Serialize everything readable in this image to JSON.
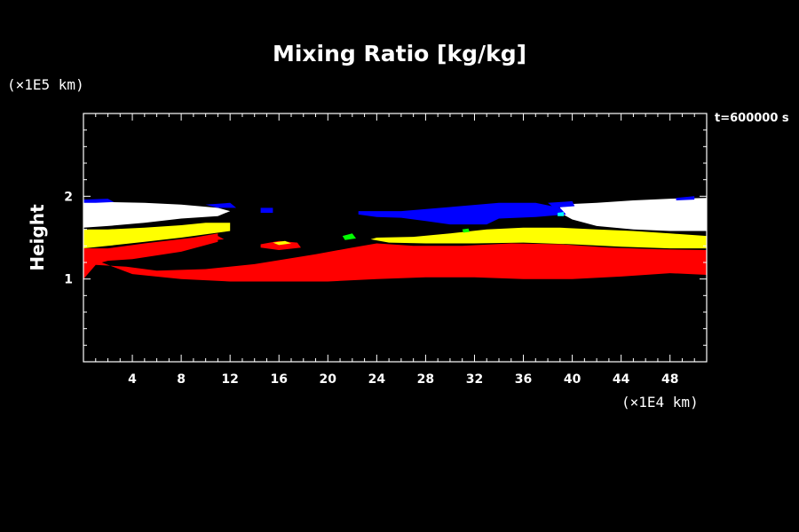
{
  "chart_data": {
    "type": "heatmap",
    "title": "Mixing Ratio [kg/kg]",
    "ylabel": "Height",
    "y_unit": "(×1E5 km)",
    "x_unit": "(×1E4 km)",
    "time_label": "t=600000 s",
    "xlim": [
      0,
      51
    ],
    "ylim": [
      0,
      3
    ],
    "x_ticks": [
      4,
      8,
      12,
      16,
      20,
      24,
      28,
      32,
      36,
      40,
      44,
      48
    ],
    "y_ticks": [
      1,
      2
    ],
    "colors": {
      "background": "#000000",
      "level_1": "#ff0000",
      "level_2": "#ffff00",
      "level_3": "#ffffff",
      "level_4": "#0000ff",
      "level_5": "#00ff00",
      "level_6": "#00ffff"
    },
    "regions": [
      {
        "color": "level_1",
        "points": [
          [
            0,
            1.37
          ],
          [
            2,
            1.37
          ],
          [
            5,
            1.43
          ],
          [
            9,
            1.5
          ],
          [
            11,
            1.55
          ],
          [
            11,
            1.45
          ],
          [
            8,
            1.33
          ],
          [
            4,
            1.24
          ],
          [
            2,
            1.22
          ],
          [
            1.5,
            1.2
          ],
          [
            4,
            1.06
          ],
          [
            8,
            1.0
          ],
          [
            12,
            0.97
          ],
          [
            16,
            0.97
          ],
          [
            20,
            0.97
          ],
          [
            24,
            1.0
          ],
          [
            28,
            1.02
          ],
          [
            32,
            1.02
          ],
          [
            36,
            1.0
          ],
          [
            40,
            1.0
          ],
          [
            44,
            1.03
          ],
          [
            48,
            1.07
          ],
          [
            51,
            1.05
          ],
          [
            51,
            1.35
          ],
          [
            47,
            1.36
          ],
          [
            43,
            1.38
          ],
          [
            39,
            1.42
          ],
          [
            35,
            1.43
          ],
          [
            31,
            1.4
          ],
          [
            27,
            1.4
          ],
          [
            24,
            1.43
          ],
          [
            22,
            1.38
          ],
          [
            19,
            1.3
          ],
          [
            14,
            1.18
          ],
          [
            10,
            1.12
          ],
          [
            6,
            1.1
          ],
          [
            3.5,
            1.15
          ],
          [
            1,
            1.17
          ],
          [
            0,
            1.0
          ]
        ]
      },
      {
        "color": "level_1",
        "points": [
          [
            14.5,
            1.42
          ],
          [
            16,
            1.46
          ],
          [
            17.5,
            1.44
          ],
          [
            17.8,
            1.38
          ],
          [
            16,
            1.35
          ],
          [
            14.5,
            1.38
          ]
        ]
      },
      {
        "color": "level_1",
        "points": [
          [
            9.5,
            1.5
          ],
          [
            11,
            1.52
          ],
          [
            11.5,
            1.48
          ],
          [
            10,
            1.46
          ]
        ]
      },
      {
        "color": "level_2",
        "points": [
          [
            0,
            1.6
          ],
          [
            2,
            1.6
          ],
          [
            5,
            1.62
          ],
          [
            8,
            1.65
          ],
          [
            10,
            1.68
          ],
          [
            12,
            1.68
          ],
          [
            12,
            1.58
          ],
          [
            10,
            1.54
          ],
          [
            8,
            1.5
          ],
          [
            5,
            1.45
          ],
          [
            2,
            1.4
          ],
          [
            0,
            1.37
          ]
        ]
      },
      {
        "color": "level_2",
        "points": [
          [
            24,
            1.5
          ],
          [
            27,
            1.51
          ],
          [
            30,
            1.55
          ],
          [
            33,
            1.6
          ],
          [
            36,
            1.62
          ],
          [
            39,
            1.62
          ],
          [
            42,
            1.6
          ],
          [
            45,
            1.58
          ],
          [
            48,
            1.55
          ],
          [
            51,
            1.52
          ],
          [
            51,
            1.37
          ],
          [
            48,
            1.37
          ],
          [
            44,
            1.39
          ],
          [
            40,
            1.42
          ],
          [
            36,
            1.44
          ],
          [
            32,
            1.43
          ],
          [
            28,
            1.43
          ],
          [
            25,
            1.44
          ],
          [
            23.5,
            1.48
          ]
        ]
      },
      {
        "color": "level_2",
        "points": [
          [
            15.5,
            1.44
          ],
          [
            16.5,
            1.46
          ],
          [
            17,
            1.43
          ],
          [
            16,
            1.41
          ]
        ]
      },
      {
        "color": "level_3",
        "points": [
          [
            0,
            1.93
          ],
          [
            2,
            1.93
          ],
          [
            5,
            1.92
          ],
          [
            8,
            1.9
          ],
          [
            11,
            1.86
          ],
          [
            12,
            1.82
          ],
          [
            11,
            1.76
          ],
          [
            8,
            1.73
          ],
          [
            5,
            1.68
          ],
          [
            2,
            1.64
          ],
          [
            0,
            1.62
          ]
        ]
      },
      {
        "color": "level_3",
        "points": [
          [
            39,
            1.9
          ],
          [
            42,
            1.92
          ],
          [
            45,
            1.95
          ],
          [
            48,
            1.97
          ],
          [
            51,
            1.98
          ],
          [
            51,
            1.58
          ],
          [
            48,
            1.58
          ],
          [
            45,
            1.6
          ],
          [
            42,
            1.64
          ],
          [
            40,
            1.72
          ],
          [
            39,
            1.8
          ]
        ]
      },
      {
        "color": "level_3",
        "points": [
          [
            30,
            1.74
          ],
          [
            32,
            1.76
          ],
          [
            33,
            1.72
          ],
          [
            32.5,
            1.67
          ],
          [
            30.5,
            1.67
          ]
        ]
      },
      {
        "color": "level_4",
        "points": [
          [
            0,
            1.96
          ],
          [
            2,
            1.97
          ],
          [
            2.5,
            1.93
          ],
          [
            1,
            1.92
          ],
          [
            0,
            1.92
          ]
        ]
      },
      {
        "color": "level_4",
        "points": [
          [
            10,
            1.9
          ],
          [
            12,
            1.92
          ],
          [
            12.5,
            1.86
          ],
          [
            11,
            1.86
          ]
        ]
      },
      {
        "color": "level_4",
        "points": [
          [
            14.5,
            1.86
          ],
          [
            15.5,
            1.86
          ],
          [
            15.5,
            1.8
          ],
          [
            14.5,
            1.8
          ]
        ]
      },
      {
        "color": "level_4",
        "points": [
          [
            22.5,
            1.82
          ],
          [
            26,
            1.82
          ],
          [
            30,
            1.87
          ],
          [
            34,
            1.92
          ],
          [
            37,
            1.92
          ],
          [
            39,
            1.86
          ],
          [
            39.5,
            1.78
          ],
          [
            37,
            1.75
          ],
          [
            34,
            1.73
          ],
          [
            33,
            1.66
          ],
          [
            30,
            1.66
          ],
          [
            28,
            1.7
          ],
          [
            26,
            1.74
          ],
          [
            24,
            1.75
          ],
          [
            22.5,
            1.78
          ]
        ]
      },
      {
        "color": "level_4",
        "points": [
          [
            38,
            1.92
          ],
          [
            40,
            1.94
          ],
          [
            40.2,
            1.88
          ],
          [
            38.5,
            1.86
          ]
        ]
      },
      {
        "color": "level_4",
        "points": [
          [
            48.5,
            1.98
          ],
          [
            50,
            2.0
          ],
          [
            50,
            1.96
          ],
          [
            48.5,
            1.95
          ]
        ]
      },
      {
        "color": "level_5",
        "points": [
          [
            21.2,
            1.52
          ],
          [
            22,
            1.55
          ],
          [
            22.3,
            1.49
          ],
          [
            21.4,
            1.47
          ]
        ]
      },
      {
        "color": "level_5",
        "points": [
          [
            31,
            1.6
          ],
          [
            31.5,
            1.61
          ],
          [
            31.6,
            1.57
          ],
          [
            31.1,
            1.56
          ]
        ]
      },
      {
        "color": "level_6",
        "points": [
          [
            38.8,
            1.8
          ],
          [
            39.3,
            1.81
          ],
          [
            39.3,
            1.76
          ],
          [
            38.8,
            1.76
          ]
        ]
      }
    ]
  }
}
